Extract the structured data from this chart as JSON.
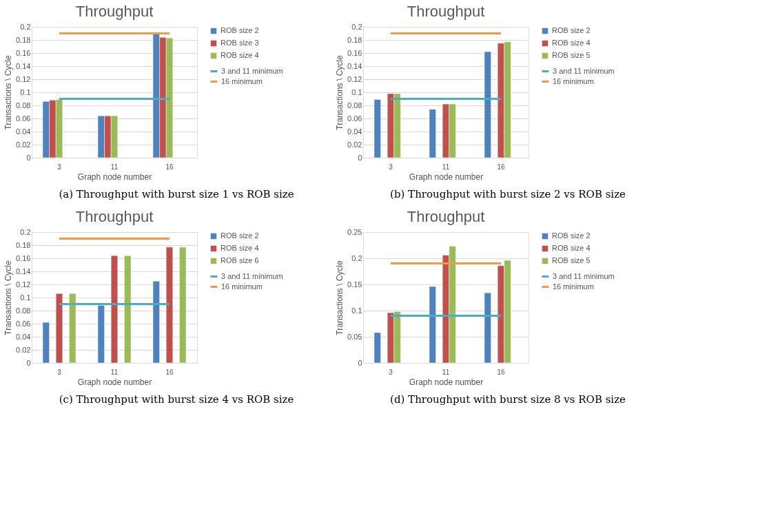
{
  "chart_data": [
    {
      "type": "bar",
      "title": "Throughput",
      "xlabel": "Graph node number",
      "ylabel": "Transactions \\ Cycle",
      "categories": [
        "3",
        "11",
        "16"
      ],
      "ylim": [
        0,
        0.2
      ],
      "yticks": [
        0,
        0.02,
        0.04,
        0.06,
        0.08,
        0.1,
        0.12,
        0.14,
        0.16,
        0.18,
        0.2
      ],
      "grid": "y",
      "legend": "right",
      "annotations": [
        "(a) Throughput with burst size 1 vs ROB size"
      ],
      "series": [
        {
          "name": "ROB size 2",
          "color": "#4f81bd",
          "values": [
            0.086,
            0.064,
            0.189
          ]
        },
        {
          "name": "ROB size 3",
          "color": "#c0504d",
          "values": [
            0.088,
            0.064,
            0.184
          ]
        },
        {
          "name": "ROB size 4",
          "color": "#9bbb59",
          "values": [
            0.089,
            0.064,
            0.183
          ]
        },
        {
          "name": "3 and 11 minimum",
          "type": "line",
          "color": "#4bacc6",
          "values": [
            0.09,
            0.09,
            0.09
          ]
        },
        {
          "name": "16 minimum",
          "type": "line",
          "color": "#f79646",
          "values": [
            0.19,
            0.19,
            0.19
          ]
        }
      ]
    },
    {
      "type": "bar",
      "title": "Throughput",
      "xlabel": "Graph node number",
      "ylabel": "Transactions \\ Cycle",
      "categories": [
        "3",
        "11",
        "16"
      ],
      "ylim": [
        0,
        0.2
      ],
      "yticks": [
        0,
        0.02,
        0.04,
        0.06,
        0.08,
        0.1,
        0.12,
        0.14,
        0.16,
        0.18,
        0.2
      ],
      "grid": "y",
      "legend": "right",
      "annotations": [
        "(b) Throughput with burst size 2 vs ROB size"
      ],
      "series": [
        {
          "name": "ROB size 2",
          "color": "#4f81bd",
          "values": [
            0.089,
            0.074,
            0.162
          ]
        },
        {
          "name": "ROB size 4",
          "color": "#c0504d",
          "values": [
            0.098,
            0.082,
            0.175
          ]
        },
        {
          "name": "ROB size 5",
          "color": "#9bbb59",
          "values": [
            0.098,
            0.082,
            0.177
          ]
        },
        {
          "name": "3 and 11 minimum",
          "type": "line",
          "color": "#4bacc6",
          "values": [
            0.09,
            0.09,
            0.09
          ]
        },
        {
          "name": "16 minimum",
          "type": "line",
          "color": "#f79646",
          "values": [
            0.19,
            0.19,
            0.19
          ]
        }
      ]
    },
    {
      "type": "bar",
      "title": "Throughput",
      "xlabel": "Graph node number",
      "ylabel": "Transactions \\ Cycle",
      "categories": [
        "3",
        "11",
        "16"
      ],
      "ylim": [
        0,
        0.2
      ],
      "yticks": [
        0,
        0.02,
        0.04,
        0.06,
        0.08,
        0.1,
        0.12,
        0.14,
        0.16,
        0.18,
        0.2
      ],
      "grid": "y",
      "legend": "right",
      "annotations": [
        "(c) Throughput with burst size 4 vs ROB size"
      ],
      "series": [
        {
          "name": "ROB size 2",
          "color": "#4f81bd",
          "values": [
            0.062,
            0.088,
            0.125
          ]
        },
        {
          "name": "ROB size 4",
          "color": "#c0504d",
          "values": [
            0.106,
            0.164,
            0.177
          ]
        },
        {
          "name": "ROB size 6",
          "color": "#9bbb59",
          "values": [
            0.106,
            0.164,
            0.177
          ]
        },
        {
          "name": "3 and 11 minimum",
          "type": "line",
          "color": "#4bacc6",
          "values": [
            0.09,
            0.09,
            0.09
          ]
        },
        {
          "name": "16 minimum",
          "type": "line",
          "color": "#f79646",
          "values": [
            0.19,
            0.19,
            0.19
          ]
        }
      ]
    },
    {
      "type": "bar",
      "title": "Throughput",
      "xlabel": "Graph node number",
      "ylabel": "Transactions \\ Cycle",
      "categories": [
        "3",
        "11",
        "16"
      ],
      "ylim": [
        0,
        0.25
      ],
      "yticks": [
        0,
        0.05,
        0.1,
        0.15,
        0.2,
        0.25
      ],
      "grid": "y",
      "legend": "right",
      "annotations": [
        "(d) Throughput with burst size 8 vs ROB size"
      ],
      "series": [
        {
          "name": "ROB size 2",
          "color": "#4f81bd",
          "values": [
            0.058,
            0.146,
            0.134
          ]
        },
        {
          "name": "ROB size 4",
          "color": "#c0504d",
          "values": [
            0.096,
            0.206,
            0.186
          ]
        },
        {
          "name": "ROB size 5",
          "color": "#9bbb59",
          "values": [
            0.098,
            0.223,
            0.196
          ]
        },
        {
          "name": "3 and 11 minimum",
          "type": "line",
          "color": "#4bacc6",
          "values": [
            0.09,
            0.09,
            0.09
          ]
        },
        {
          "name": "16 minimum",
          "type": "line",
          "color": "#f79646",
          "values": [
            0.19,
            0.19,
            0.19
          ]
        }
      ]
    }
  ]
}
